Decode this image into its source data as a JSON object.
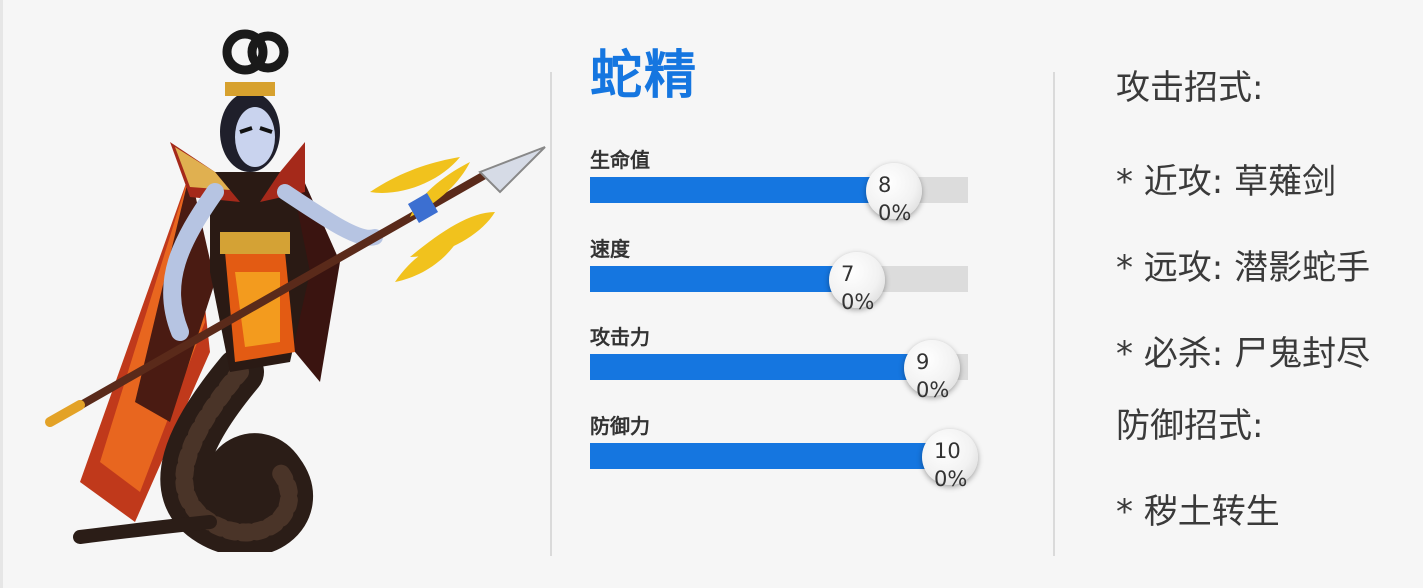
{
  "character": {
    "name": "蛇精",
    "portrait_icon": "snake-spirit-portrait",
    "accent_color": "#1576e0"
  },
  "stats": [
    {
      "label": "生命值",
      "value": 80,
      "display": "80%"
    },
    {
      "label": "速度",
      "value": 70,
      "display": "70%"
    },
    {
      "label": "攻击力",
      "value": 90,
      "display": "90%"
    },
    {
      "label": "防御力",
      "value": 100,
      "display": "100%"
    }
  ],
  "moves": {
    "attack_heading": "攻击招式:",
    "attack_items": [
      "* 近攻: 草薙剑",
      "* 远攻: 潜影蛇手",
      "* 必杀: 尸鬼封尽"
    ],
    "defense_heading": "防御招式:",
    "defense_items": [
      "* 秽土转生"
    ]
  }
}
